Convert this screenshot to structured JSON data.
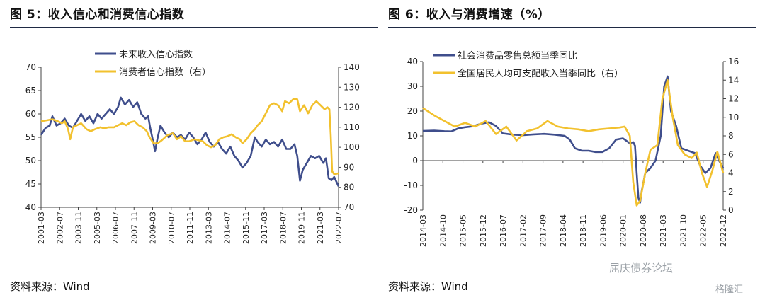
{
  "figures": [
    {
      "title": "图 5：收入信心和消费信心指数",
      "source": "资料来源：Wind"
    },
    {
      "title": "图 6：收入与消费增速（%）",
      "source": "资料来源：Wind"
    }
  ],
  "watermark": {
    "text1": "屈庆债券论坛",
    "text2": "格隆汇"
  },
  "colors": {
    "navy": "#3F4E8C",
    "gold": "#F2C12E",
    "rule": "#1f2a44"
  },
  "chart_data": [
    {
      "type": "line",
      "title": "",
      "x_ticks": [
        "2001-03",
        "2002-07",
        "2003-11",
        "2005-03",
        "2006-07",
        "2007-11",
        "2009-03",
        "2010-07",
        "2011-11",
        "2013-03",
        "2014-07",
        "2015-11",
        "2017-03",
        "2018-07",
        "2019-11",
        "2021-03",
        "2022-07"
      ],
      "x_range": [
        2001.17,
        2022.92
      ],
      "y_left": {
        "min": 40,
        "max": 70,
        "ticks": [
          40,
          45,
          50,
          55,
          60,
          65,
          70
        ]
      },
      "y_right": {
        "min": 70,
        "max": 140,
        "ticks": [
          70,
          80,
          90,
          100,
          110,
          120,
          130,
          140
        ]
      },
      "legend_position": "top",
      "series": [
        {
          "name": "未来收入信心指数",
          "axis": "left",
          "color": "#3F4E8C",
          "points": [
            [
              2001.17,
              55.5
            ],
            [
              2001.5,
              57
            ],
            [
              2001.8,
              57.5
            ],
            [
              2002.0,
              59.5
            ],
            [
              2002.3,
              57.5
            ],
            [
              2002.6,
              58
            ],
            [
              2002.9,
              59
            ],
            [
              2003.2,
              57.5
            ],
            [
              2003.5,
              57
            ],
            [
              2003.8,
              58.5
            ],
            [
              2004.1,
              60
            ],
            [
              2004.4,
              58.5
            ],
            [
              2004.7,
              59.5
            ],
            [
              2005.0,
              58
            ],
            [
              2005.3,
              60
            ],
            [
              2005.6,
              59
            ],
            [
              2005.9,
              60
            ],
            [
              2006.2,
              61
            ],
            [
              2006.5,
              60
            ],
            [
              2006.8,
              61.5
            ],
            [
              2007.0,
              63.5
            ],
            [
              2007.3,
              62
            ],
            [
              2007.6,
              63
            ],
            [
              2007.9,
              61.5
            ],
            [
              2008.2,
              62.5
            ],
            [
              2008.5,
              60
            ],
            [
              2008.8,
              59
            ],
            [
              2009.0,
              59.5
            ],
            [
              2009.15,
              57
            ],
            [
              2009.3,
              55
            ],
            [
              2009.5,
              52
            ],
            [
              2009.7,
              55
            ],
            [
              2009.9,
              57.5
            ],
            [
              2010.2,
              56
            ],
            [
              2010.5,
              55
            ],
            [
              2010.8,
              56
            ],
            [
              2011.1,
              55
            ],
            [
              2011.4,
              55.5
            ],
            [
              2011.7,
              54.5
            ],
            [
              2012.0,
              56
            ],
            [
              2012.3,
              55
            ],
            [
              2012.6,
              53.5
            ],
            [
              2012.9,
              54.5
            ],
            [
              2013.2,
              56
            ],
            [
              2013.5,
              54
            ],
            [
              2013.8,
              53
            ],
            [
              2014.1,
              54
            ],
            [
              2014.4,
              52.5
            ],
            [
              2014.7,
              51.5
            ],
            [
              2015.0,
              53
            ],
            [
              2015.3,
              51
            ],
            [
              2015.6,
              50
            ],
            [
              2015.9,
              48.5
            ],
            [
              2016.2,
              49.5
            ],
            [
              2016.5,
              51
            ],
            [
              2016.8,
              55
            ],
            [
              2017.0,
              54
            ],
            [
              2017.3,
              53
            ],
            [
              2017.6,
              54.5
            ],
            [
              2017.9,
              53.5
            ],
            [
              2018.2,
              54
            ],
            [
              2018.5,
              53
            ],
            [
              2018.8,
              54.5
            ],
            [
              2019.1,
              52.5
            ],
            [
              2019.4,
              52.5
            ],
            [
              2019.7,
              53.5
            ],
            [
              2019.9,
              51
            ],
            [
              2020.1,
              45.7
            ],
            [
              2020.3,
              48
            ],
            [
              2020.6,
              49.5
            ],
            [
              2020.9,
              51
            ],
            [
              2021.2,
              50.5
            ],
            [
              2021.5,
              51
            ],
            [
              2021.8,
              49.5
            ],
            [
              2022.0,
              50.5
            ],
            [
              2022.2,
              46.2
            ],
            [
              2022.4,
              45.8
            ],
            [
              2022.6,
              46.5
            ],
            [
              2022.92,
              44.5
            ]
          ]
        },
        {
          "name": "消费者信心指数（右）",
          "axis": "right",
          "color": "#F2C12E",
          "points": [
            [
              2001.17,
              113
            ],
            [
              2001.6,
              113.5
            ],
            [
              2002.0,
              114
            ],
            [
              2002.4,
              113
            ],
            [
              2002.7,
              112
            ],
            [
              2002.9,
              113
            ],
            [
              2003.15,
              109
            ],
            [
              2003.3,
              104
            ],
            [
              2003.5,
              110
            ],
            [
              2003.8,
              111
            ],
            [
              2004.1,
              112
            ],
            [
              2004.5,
              109
            ],
            [
              2004.8,
              108
            ],
            [
              2005.1,
              109
            ],
            [
              2005.5,
              110
            ],
            [
              2005.8,
              109.5
            ],
            [
              2006.1,
              110
            ],
            [
              2006.5,
              110
            ],
            [
              2006.8,
              111
            ],
            [
              2007.1,
              112
            ],
            [
              2007.4,
              111
            ],
            [
              2007.7,
              112.5
            ],
            [
              2008.0,
              113
            ],
            [
              2008.3,
              111
            ],
            [
              2008.6,
              110
            ],
            [
              2008.9,
              108
            ],
            [
              2009.1,
              105
            ],
            [
              2009.4,
              102
            ],
            [
              2009.7,
              102
            ],
            [
              2010.0,
              103.5
            ],
            [
              2010.4,
              106
            ],
            [
              2010.8,
              107
            ],
            [
              2011.1,
              104
            ],
            [
              2011.4,
              105.5
            ],
            [
              2011.7,
              103
            ],
            [
              2012.0,
              103
            ],
            [
              2012.4,
              104
            ],
            [
              2012.7,
              103.5
            ],
            [
              2013.0,
              103
            ],
            [
              2013.3,
              101
            ],
            [
              2013.6,
              100
            ],
            [
              2013.9,
              101
            ],
            [
              2014.2,
              104
            ],
            [
              2014.5,
              105
            ],
            [
              2014.8,
              105.5
            ],
            [
              2015.1,
              106.5
            ],
            [
              2015.4,
              105
            ],
            [
              2015.7,
              104
            ],
            [
              2015.9,
              102
            ],
            [
              2016.2,
              104
            ],
            [
              2016.5,
              107
            ],
            [
              2016.8,
              109
            ],
            [
              2017.0,
              111
            ],
            [
              2017.3,
              113
            ],
            [
              2017.6,
              117
            ],
            [
              2017.9,
              121
            ],
            [
              2018.2,
              122
            ],
            [
              2018.5,
              121
            ],
            [
              2018.8,
              118
            ],
            [
              2019.0,
              123
            ],
            [
              2019.3,
              122
            ],
            [
              2019.6,
              124
            ],
            [
              2019.9,
              124
            ],
            [
              2020.1,
              118
            ],
            [
              2020.4,
              121
            ],
            [
              2020.7,
              117
            ],
            [
              2021.0,
              121
            ],
            [
              2021.3,
              123
            ],
            [
              2021.6,
              121
            ],
            [
              2021.9,
              119
            ],
            [
              2022.1,
              120
            ],
            [
              2022.25,
              119
            ],
            [
              2022.35,
              106
            ],
            [
              2022.45,
              88
            ],
            [
              2022.6,
              86.5
            ],
            [
              2022.92,
              87
            ]
          ]
        }
      ]
    },
    {
      "type": "line",
      "title": "",
      "x_ticks": [
        "2014-03",
        "2014-10",
        "2015-05",
        "2015-12",
        "2016-07",
        "2017-02",
        "2017-09",
        "2018-04",
        "2018-11",
        "2019-06",
        "2020-01",
        "2020-08",
        "2021-03",
        "2021-10",
        "2022-05",
        "2022-12"
      ],
      "x_range": [
        2014.17,
        2022.92
      ],
      "y_left": {
        "min": -20,
        "max": 40,
        "ticks": [
          -20,
          -10,
          0,
          10,
          20,
          30,
          40
        ]
      },
      "y_right": {
        "min": 0,
        "max": 16,
        "ticks": [
          0,
          2,
          4,
          6,
          8,
          10,
          12,
          14,
          16
        ]
      },
      "legend_position": "top",
      "series": [
        {
          "name": "社会消费品零售总额当季同比",
          "axis": "left",
          "color": "#3F4E8C",
          "points": [
            [
              2014.17,
              12
            ],
            [
              2014.5,
              12.1
            ],
            [
              2014.8,
              11.9
            ],
            [
              2015.0,
              11.8
            ],
            [
              2015.2,
              13
            ],
            [
              2015.4,
              13.5
            ],
            [
              2015.6,
              13.8
            ],
            [
              2015.9,
              15
            ],
            [
              2016.1,
              15.5
            ],
            [
              2016.3,
              14
            ],
            [
              2016.5,
              11
            ],
            [
              2016.8,
              10.5
            ],
            [
              2017.1,
              10.3
            ],
            [
              2017.4,
              10.6
            ],
            [
              2017.7,
              10.8
            ],
            [
              2018.0,
              10.5
            ],
            [
              2018.3,
              10
            ],
            [
              2018.45,
              8.5
            ],
            [
              2018.6,
              5
            ],
            [
              2018.8,
              4
            ],
            [
              2019.0,
              4
            ],
            [
              2019.2,
              3.5
            ],
            [
              2019.4,
              3.5
            ],
            [
              2019.6,
              5
            ],
            [
              2019.8,
              8.5
            ],
            [
              2020.0,
              9
            ],
            [
              2020.1,
              8
            ],
            [
              2020.2,
              7
            ],
            [
              2020.3,
              7.5
            ],
            [
              2020.35,
              6
            ],
            [
              2020.4,
              -5
            ],
            [
              2020.45,
              -15
            ],
            [
              2020.5,
              -17
            ],
            [
              2020.55,
              -12
            ],
            [
              2020.65,
              -5
            ],
            [
              2020.8,
              -3
            ],
            [
              2020.95,
              0
            ],
            [
              2021.1,
              10
            ],
            [
              2021.2,
              30
            ],
            [
              2021.3,
              34
            ],
            [
              2021.4,
              20
            ],
            [
              2021.55,
              14
            ],
            [
              2021.7,
              5
            ],
            [
              2021.9,
              4
            ],
            [
              2022.1,
              3
            ],
            [
              2022.25,
              -2
            ],
            [
              2022.4,
              -5
            ],
            [
              2022.55,
              -3
            ],
            [
              2022.7,
              3
            ],
            [
              2022.8,
              0
            ],
            [
              2022.92,
              -3
            ]
          ]
        },
        {
          "name": "全国居民人均可支配收入当季同比（右）",
          "axis": "right",
          "color": "#F2C12E",
          "points": [
            [
              2014.17,
              11
            ],
            [
              2014.5,
              10.2
            ],
            [
              2014.8,
              9.6
            ],
            [
              2015.1,
              9
            ],
            [
              2015.4,
              9.4
            ],
            [
              2015.7,
              9
            ],
            [
              2016.0,
              9.6
            ],
            [
              2016.3,
              8.2
            ],
            [
              2016.6,
              9
            ],
            [
              2016.9,
              7.5
            ],
            [
              2017.2,
              8.5
            ],
            [
              2017.5,
              8.8
            ],
            [
              2017.8,
              9.6
            ],
            [
              2018.1,
              9
            ],
            [
              2018.4,
              8.8
            ],
            [
              2018.7,
              8.7
            ],
            [
              2019.0,
              8.5
            ],
            [
              2019.3,
              8.7
            ],
            [
              2019.6,
              8.8
            ],
            [
              2019.9,
              8.9
            ],
            [
              2020.05,
              9
            ],
            [
              2020.2,
              8
            ],
            [
              2020.3,
              3
            ],
            [
              2020.4,
              0.5
            ],
            [
              2020.5,
              1
            ],
            [
              2020.65,
              4
            ],
            [
              2020.8,
              6.5
            ],
            [
              2021.0,
              7
            ],
            [
              2021.15,
              12
            ],
            [
              2021.3,
              14
            ],
            [
              2021.45,
              10
            ],
            [
              2021.6,
              7
            ],
            [
              2021.8,
              6
            ],
            [
              2022.0,
              5.6
            ],
            [
              2022.15,
              6.2
            ],
            [
              2022.3,
              4
            ],
            [
              2022.45,
              2.5
            ],
            [
              2022.6,
              4.2
            ],
            [
              2022.75,
              6.3
            ],
            [
              2022.92,
              4
            ]
          ]
        }
      ]
    }
  ]
}
